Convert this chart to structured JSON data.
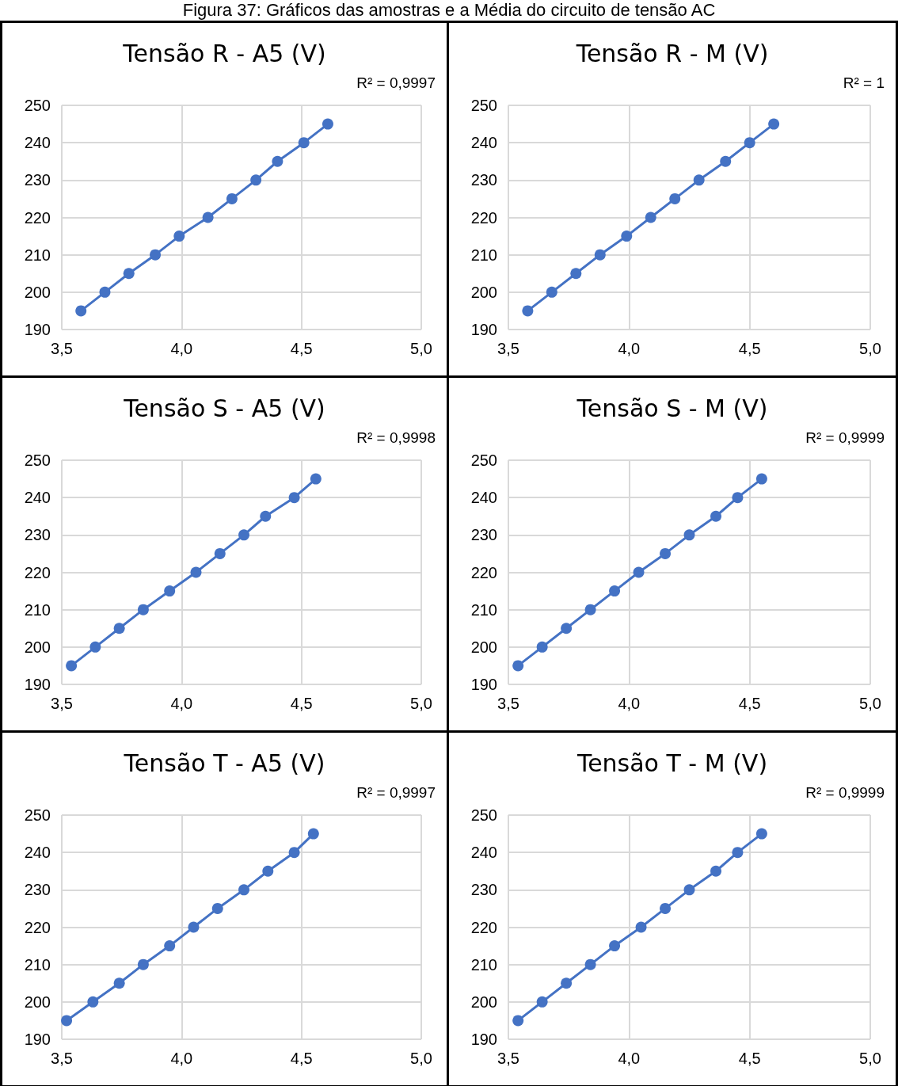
{
  "chart_data": [
    {
      "type": "line",
      "title": "Tensão R - A5 (V)",
      "annotations": [
        "R² = 0,9997",
        "Figura 37: Gráficos das amostras e a Média do circuito de tensão AC"
      ],
      "marker": "circle",
      "grid": true,
      "xlim": [
        3.5,
        5.0
      ],
      "xticks": [
        {
          "value": 3.5,
          "label": "3,5"
        },
        {
          "value": 4.0,
          "label": "4,0"
        },
        {
          "value": 4.5,
          "label": "4,5"
        },
        {
          "value": 5.0,
          "label": "5,0"
        }
      ],
      "ylim": [
        190,
        250
      ],
      "yticks": [
        190,
        200,
        210,
        220,
        230,
        240,
        250
      ],
      "series": [
        {
          "color": "#4472c4",
          "x": [
            3.58,
            3.68,
            3.78,
            3.89,
            3.99,
            4.11,
            4.21,
            4.31,
            4.4,
            4.51,
            4.61
          ],
          "values": [
            195,
            200,
            205,
            210,
            215,
            220,
            225,
            230,
            235,
            240,
            245
          ]
        }
      ]
    },
    {
      "type": "line",
      "title": "Tensão R - M (V)",
      "annotations": [
        "R² = 1"
      ],
      "marker": "circle",
      "grid": true,
      "xlim": [
        3.5,
        5.0
      ],
      "xticks": [
        {
          "value": 3.5,
          "label": "3,5"
        },
        {
          "value": 4.0,
          "label": "4,0"
        },
        {
          "value": 4.5,
          "label": "4,5"
        },
        {
          "value": 5.0,
          "label": "5,0"
        }
      ],
      "ylim": [
        190,
        250
      ],
      "yticks": [
        190,
        200,
        210,
        220,
        230,
        240,
        250
      ],
      "series": [
        {
          "color": "#4472c4",
          "x": [
            3.58,
            3.68,
            3.78,
            3.88,
            3.99,
            4.09,
            4.19,
            4.29,
            4.4,
            4.5,
            4.6
          ],
          "values": [
            195,
            200,
            205,
            210,
            215,
            220,
            225,
            230,
            235,
            240,
            245
          ]
        }
      ]
    },
    {
      "type": "line",
      "title": "Tensão S - A5 (V)",
      "annotations": [
        "R² = 0,9998"
      ],
      "marker": "circle",
      "grid": true,
      "xlim": [
        3.5,
        5.0
      ],
      "xticks": [
        {
          "value": 3.5,
          "label": "3,5"
        },
        {
          "value": 4.0,
          "label": "4,0"
        },
        {
          "value": 4.5,
          "label": "4,5"
        },
        {
          "value": 5.0,
          "label": "5,0"
        }
      ],
      "ylim": [
        190,
        250
      ],
      "yticks": [
        190,
        200,
        210,
        220,
        230,
        240,
        250
      ],
      "series": [
        {
          "color": "#4472c4",
          "x": [
            3.54,
            3.64,
            3.74,
            3.84,
            3.95,
            4.06,
            4.16,
            4.26,
            4.35,
            4.47,
            4.56
          ],
          "values": [
            195,
            200,
            205,
            210,
            215,
            220,
            225,
            230,
            235,
            240,
            245
          ]
        }
      ]
    },
    {
      "type": "line",
      "title": "Tensão S - M (V)",
      "annotations": [
        "R² = 0,9999"
      ],
      "marker": "circle",
      "grid": true,
      "xlim": [
        3.5,
        5.0
      ],
      "xticks": [
        {
          "value": 3.5,
          "label": "3,5"
        },
        {
          "value": 4.0,
          "label": "4,0"
        },
        {
          "value": 4.5,
          "label": "4,5"
        },
        {
          "value": 5.0,
          "label": "5,0"
        }
      ],
      "ylim": [
        190,
        250
      ],
      "yticks": [
        190,
        200,
        210,
        220,
        230,
        240,
        250
      ],
      "series": [
        {
          "color": "#4472c4",
          "x": [
            3.54,
            3.64,
            3.74,
            3.84,
            3.94,
            4.04,
            4.15,
            4.25,
            4.36,
            4.45,
            4.55
          ],
          "values": [
            195,
            200,
            205,
            210,
            215,
            220,
            225,
            230,
            235,
            240,
            245
          ]
        }
      ]
    },
    {
      "type": "line",
      "title": "Tensão T - A5 (V)",
      "annotations": [
        "R² = 0,9997"
      ],
      "marker": "circle",
      "grid": true,
      "xlim": [
        3.5,
        5.0
      ],
      "xticks": [
        {
          "value": 3.5,
          "label": "3,5"
        },
        {
          "value": 4.0,
          "label": "4,0"
        },
        {
          "value": 4.5,
          "label": "4,5"
        },
        {
          "value": 5.0,
          "label": "5,0"
        }
      ],
      "ylim": [
        190,
        250
      ],
      "yticks": [
        190,
        200,
        210,
        220,
        230,
        240,
        250
      ],
      "series": [
        {
          "color": "#4472c4",
          "x": [
            3.52,
            3.63,
            3.74,
            3.84,
            3.95,
            4.05,
            4.15,
            4.26,
            4.36,
            4.47,
            4.55
          ],
          "values": [
            195,
            200,
            205,
            210,
            215,
            220,
            225,
            230,
            235,
            240,
            245
          ]
        }
      ]
    },
    {
      "type": "line",
      "title": "Tensão T - M (V)",
      "annotations": [
        "R² = 0,9999"
      ],
      "marker": "circle",
      "grid": true,
      "xlim": [
        3.5,
        5.0
      ],
      "xticks": [
        {
          "value": 3.5,
          "label": "3,5"
        },
        {
          "value": 4.0,
          "label": "4,0"
        },
        {
          "value": 4.5,
          "label": "4,5"
        },
        {
          "value": 5.0,
          "label": "5,0"
        }
      ],
      "ylim": [
        190,
        250
      ],
      "yticks": [
        190,
        200,
        210,
        220,
        230,
        240,
        250
      ],
      "series": [
        {
          "color": "#4472c4",
          "x": [
            3.54,
            3.64,
            3.74,
            3.84,
            3.94,
            4.05,
            4.15,
            4.25,
            4.36,
            4.45,
            4.55
          ],
          "values": [
            195,
            200,
            205,
            210,
            215,
            220,
            225,
            230,
            235,
            240,
            245
          ]
        }
      ]
    }
  ]
}
